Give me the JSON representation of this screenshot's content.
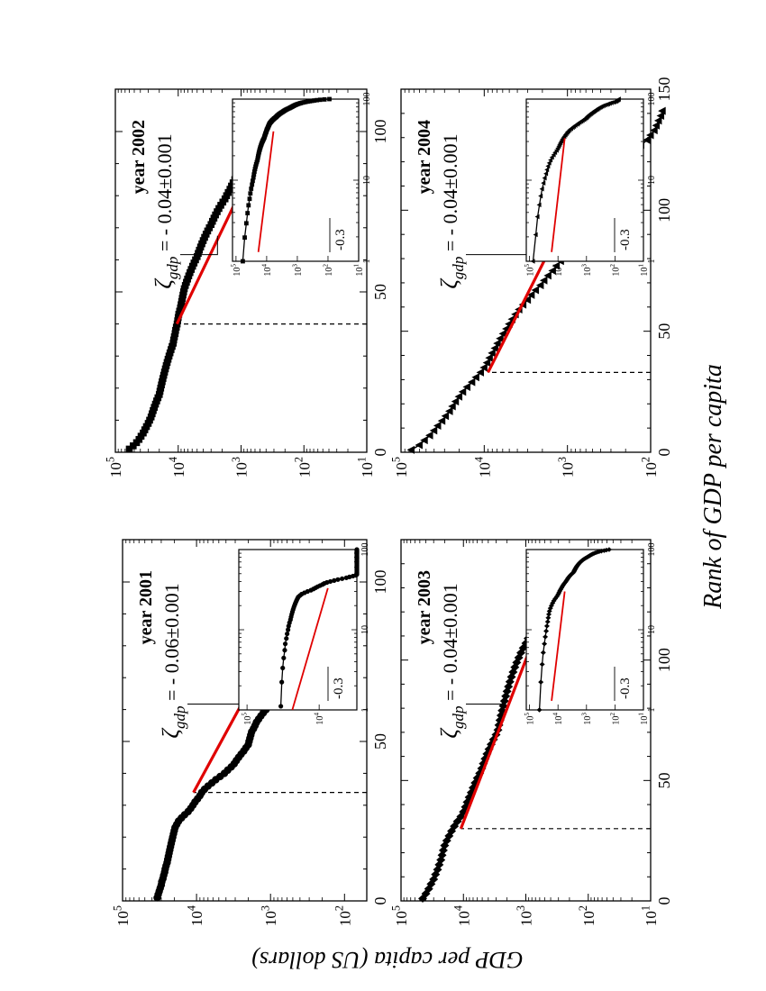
{
  "figure": {
    "xlabel": "Rank of GDP per capita",
    "ylabel": "GDP per capita (US dollars)"
  },
  "chart_data": [
    {
      "type": "scatter",
      "panel": "top-left",
      "title": "year 2001",
      "annotation": {
        "symbol": "ζ",
        "sub": "gdp",
        "text": " = - 0.06±0.001"
      },
      "marker": "circle",
      "xlim": [
        0,
        100
      ],
      "x_ticks": [
        "0",
        "50",
        "100"
      ],
      "ylim": [
        50,
        100000
      ],
      "y_ticks": [
        {
          "v": 100,
          "t": "10",
          "e": "2"
        },
        {
          "v": 1000,
          "t": "10",
          "e": "3"
        },
        {
          "v": 10000,
          "t": "10",
          "e": "4"
        },
        {
          "v": 100000,
          "t": "10",
          "e": "5"
        }
      ],
      "cutoff_rank": 34,
      "fit": {
        "x": [
          34,
          92
        ],
        "y": [
          11000,
          480
        ]
      },
      "inset": {
        "slope_label": "-0.3",
        "x_ticks": [
          "1",
          "10",
          "100"
        ],
        "x_range": [
          1,
          100
        ],
        "y_ticks": [
          {
            "t": "10",
            "e": "5"
          },
          {
            "t": "10",
            "e": "4"
          }
        ],
        "y_range": [
          3000,
          130000
        ],
        "fit_x": [
          1,
          33
        ],
        "fit_y": [
          28000,
          9000
        ]
      },
      "points": {
        "x": [
          1,
          2,
          3,
          4,
          5,
          6,
          7,
          8,
          9,
          10,
          11,
          12,
          13,
          14,
          15,
          16,
          17,
          18,
          19,
          20,
          21,
          22,
          23,
          24,
          25,
          26,
          27,
          28,
          29,
          30,
          31,
          32,
          33,
          34,
          35,
          36,
          37,
          38,
          39,
          40,
          41,
          42,
          43,
          44,
          45,
          46,
          47,
          48,
          49,
          50,
          51,
          52,
          53,
          54,
          55,
          56,
          57,
          58,
          59,
          60,
          61,
          62,
          63,
          64,
          65,
          66,
          67,
          68,
          69,
          70,
          71,
          72,
          73,
          74,
          75,
          76,
          77,
          78,
          79,
          80,
          81,
          82,
          83,
          84,
          85,
          86,
          87,
          88,
          89,
          90
        ],
        "y": [
          34000,
          33000,
          32000,
          31000,
          30000,
          29500,
          28500,
          27800,
          27000,
          26500,
          25800,
          25000,
          24500,
          24000,
          23500,
          23000,
          22500,
          22000,
          21500,
          21000,
          20500,
          20000,
          19500,
          18500,
          17500,
          16000,
          14500,
          13000,
          12000,
          11200,
          10500,
          9700,
          9000,
          8500,
          7800,
          7000,
          6200,
          5500,
          4800,
          4200,
          3800,
          3400,
          3100,
          2900,
          2700,
          2500,
          2300,
          2150,
          2000,
          1950,
          1900,
          1850,
          1800,
          1700,
          1620,
          1550,
          1450,
          1350,
          1250,
          1150,
          1050,
          950,
          900,
          850,
          820,
          780,
          740,
          700,
          660,
          620,
          580,
          540,
          500,
          460,
          430,
          400,
          370,
          340,
          310,
          280,
          250,
          220,
          190,
          170,
          150,
          130,
          110,
          100,
          90,
          80
        ]
      }
    },
    {
      "type": "scatter",
      "panel": "top-right",
      "title": "year 2002",
      "annotation": {
        "symbol": "ζ",
        "sub": "gdp",
        "text": " = - 0.04±0.001"
      },
      "marker": "square",
      "xlim": [
        0,
        100
      ],
      "x_ticks": [
        "0",
        "50",
        "100"
      ],
      "ylim": [
        10,
        100000
      ],
      "y_ticks": [
        {
          "v": 10,
          "t": "10",
          "e": "1"
        },
        {
          "v": 100,
          "t": "10",
          "e": "2"
        },
        {
          "v": 1000,
          "t": "10",
          "e": "3"
        },
        {
          "v": 10000,
          "t": "10",
          "e": "4"
        },
        {
          "v": 100000,
          "t": "10",
          "e": "5"
        }
      ],
      "cutoff_rank": 40,
      "fit": {
        "x": [
          40,
          95
        ],
        "y": [
          10500,
          470
        ]
      },
      "inset": {
        "slope_label": "-0.3",
        "x_ticks": [
          "1",
          "10",
          "100"
        ],
        "x_range": [
          1,
          100
        ],
        "y_ticks": [
          {
            "t": "10",
            "e": "5"
          },
          {
            "t": "10",
            "e": "4"
          },
          {
            "t": "10",
            "e": "3"
          },
          {
            "t": "10",
            "e": "2"
          },
          {
            "t": "10",
            "e": "1"
          }
        ],
        "y_range": [
          10,
          130000
        ],
        "fit_x": [
          1.3,
          40
        ],
        "fit_y": [
          28000,
          9000
        ]
      },
      "points": {
        "x": [
          1,
          2,
          3,
          4,
          5,
          6,
          7,
          8,
          9,
          10,
          11,
          12,
          13,
          14,
          15,
          16,
          17,
          18,
          19,
          20,
          21,
          22,
          23,
          24,
          25,
          26,
          27,
          28,
          29,
          30,
          31,
          32,
          33,
          34,
          35,
          36,
          37,
          38,
          39,
          40,
          41,
          42,
          43,
          44,
          45,
          46,
          47,
          48,
          49,
          50,
          51,
          52,
          53,
          54,
          55,
          56,
          57,
          58,
          59,
          60,
          61,
          62,
          63,
          64,
          65,
          66,
          67,
          68,
          69,
          70,
          71,
          72,
          73,
          74,
          75,
          76,
          77,
          78,
          79,
          80,
          81,
          82,
          83,
          84,
          85,
          86,
          87,
          88,
          89,
          90,
          91,
          92,
          93,
          94,
          95,
          96,
          97,
          98,
          99,
          100,
          101,
          102
        ],
        "y": [
          60000,
          52000,
          46000,
          42000,
          39000,
          36000,
          34000,
          32000,
          30000,
          28500,
          27000,
          26000,
          25000,
          24000,
          23000,
          22000,
          21000,
          20000,
          19500,
          19000,
          18500,
          18000,
          17500,
          17000,
          16500,
          16000,
          15500,
          15000,
          14500,
          14000,
          13500,
          13000,
          12500,
          12000,
          11800,
          11500,
          11200,
          11000,
          10700,
          10400,
          10200,
          10000,
          9800,
          9500,
          9200,
          9000,
          8800,
          8600,
          8400,
          8200,
          8000,
          7700,
          7400,
          7100,
          6800,
          6500,
          6200,
          5900,
          5600,
          5300,
          5000,
          4800,
          4600,
          4400,
          4200,
          4000,
          3800,
          3600,
          3400,
          3200,
          3000,
          2850,
          2700,
          2550,
          2400,
          2250,
          2100,
          1950,
          1800,
          1700,
          1600,
          1500,
          1420,
          1340,
          1260,
          1180,
          1100,
          1020,
          940,
          860,
          780,
          700,
          620,
          540,
          460,
          390,
          330,
          280,
          230,
          180,
          130,
          90
        ]
      }
    },
    {
      "type": "scatter",
      "panel": "bottom-left",
      "title": "year 2003",
      "annotation": {
        "symbol": "ζ",
        "sub": "gdp",
        "text": " = - 0.04±0.001"
      },
      "marker": "diamond",
      "xlim": [
        0,
        150
      ],
      "x_ticks": [
        "0",
        "50",
        "100"
      ],
      "ylim": [
        10,
        100000
      ],
      "y_ticks": [
        {
          "v": 10,
          "t": "10",
          "e": "1"
        },
        {
          "v": 100,
          "t": "10",
          "e": "2"
        },
        {
          "v": 1000,
          "t": "10",
          "e": "3"
        },
        {
          "v": 10000,
          "t": "10",
          "e": "4"
        },
        {
          "v": 100000,
          "t": "10",
          "e": "5"
        }
      ],
      "cutoff_rank": 30,
      "fit": {
        "x": [
          30,
          130
        ],
        "y": [
          11000,
          360
        ]
      },
      "inset": {
        "slope_label": "-0.3",
        "x_ticks": [
          "1",
          "10",
          "100"
        ],
        "x_range": [
          1,
          100
        ],
        "y_ticks": [
          {
            "t": "10",
            "e": "5"
          },
          {
            "t": "10",
            "e": "4"
          },
          {
            "t": "10",
            "e": "3"
          },
          {
            "t": "10",
            "e": "2"
          },
          {
            "t": "10",
            "e": "1"
          }
        ],
        "y_range": [
          10,
          130000
        ],
        "fit_x": [
          1.3,
          30
        ],
        "fit_y": [
          26000,
          9000
        ]
      },
      "points": {
        "x": [
          1,
          3,
          5,
          7,
          9,
          11,
          13,
          15,
          17,
          19,
          21,
          23,
          25,
          27,
          29,
          31,
          33,
          35,
          37,
          39,
          41,
          43,
          45,
          47,
          49,
          51,
          53,
          55,
          57,
          59,
          61,
          63,
          65,
          67,
          69,
          71,
          73,
          75,
          77,
          79,
          81,
          83,
          85,
          87,
          89,
          91,
          93,
          95,
          97,
          99,
          101,
          103,
          105,
          107,
          109,
          111,
          113,
          115,
          117,
          119,
          121,
          123,
          125,
          127,
          129,
          131,
          133,
          135
        ],
        "y": [
          45000,
          40000,
          36000,
          33000,
          30000,
          28000,
          26000,
          24500,
          23000,
          22000,
          21000,
          20000,
          18500,
          17000,
          15500,
          14000,
          12500,
          11000,
          10000,
          9300,
          8700,
          8100,
          7500,
          7000,
          6500,
          6000,
          5500,
          5100,
          4800,
          4500,
          4200,
          3900,
          3600,
          3300,
          3000,
          2800,
          2700,
          2600,
          2500,
          2400,
          2300,
          2200,
          2100,
          2000,
          1900,
          1800,
          1700,
          1600,
          1500,
          1400,
          1300,
          1200,
          1100,
          1000,
          920,
          850,
          780,
          720,
          660,
          600,
          540,
          480,
          420,
          360,
          300,
          240,
          200,
          160
        ]
      }
    },
    {
      "type": "scatter",
      "panel": "bottom-right",
      "title": "year 2004",
      "annotation": {
        "symbol": "ζ",
        "sub": "gdp",
        "text": " = - 0.04±0.001"
      },
      "marker": "triangle",
      "xlim": [
        0,
        150
      ],
      "x_ticks": [
        "0",
        "50",
        "100",
        "150"
      ],
      "ylim": [
        100,
        100000
      ],
      "y_ticks": [
        {
          "v": 100,
          "t": "10",
          "e": "2"
        },
        {
          "v": 1000,
          "t": "10",
          "e": "3"
        },
        {
          "v": 10000,
          "t": "10",
          "e": "4"
        },
        {
          "v": 100000,
          "t": "10",
          "e": "5"
        }
      ],
      "cutoff_rank": 33,
      "fit": {
        "x": [
          33,
          137
        ],
        "y": [
          9000,
          270
        ]
      },
      "inset": {
        "slope_label": "-0.3",
        "x_ticks": [
          "1",
          "10",
          "100"
        ],
        "x_range": [
          1,
          100
        ],
        "y_ticks": [
          {
            "t": "10",
            "e": "5"
          },
          {
            "t": "10",
            "e": "4"
          },
          {
            "t": "10",
            "e": "3"
          },
          {
            "t": "10",
            "e": "2"
          },
          {
            "t": "10",
            "e": "1"
          }
        ],
        "y_range": [
          10,
          130000
        ],
        "fit_x": [
          1.3,
          33
        ],
        "fit_y": [
          26000,
          9000
        ]
      },
      "points": {
        "x": [
          1,
          3,
          5,
          7,
          9,
          11,
          13,
          15,
          17,
          19,
          21,
          23,
          25,
          27,
          29,
          31,
          33,
          35,
          37,
          39,
          41,
          43,
          45,
          47,
          49,
          51,
          53,
          55,
          57,
          59,
          61,
          63,
          65,
          67,
          69,
          71,
          73,
          75,
          77,
          79,
          81,
          83,
          85,
          87,
          89,
          91,
          93,
          95,
          97,
          99,
          101,
          103,
          105,
          107,
          109,
          111,
          113,
          115,
          117,
          119,
          121,
          123,
          125,
          127,
          129,
          131,
          133,
          135,
          137,
          139,
          141
        ],
        "y": [
          75000,
          60000,
          52000,
          45000,
          40000,
          36000,
          32000,
          29000,
          26000,
          24000,
          22000,
          20000,
          18000,
          16000,
          14000,
          12500,
          11000,
          10000,
          9200,
          8600,
          8000,
          7400,
          6900,
          6400,
          5900,
          5400,
          5000,
          4600,
          4200,
          3800,
          3400,
          3000,
          2700,
          2400,
          2100,
          1900,
          1700,
          1500,
          1350,
          1200,
          1100,
          1000,
          940,
          880,
          820,
          760,
          700,
          650,
          600,
          550,
          510,
          470,
          430,
          400,
          370,
          340,
          310,
          280,
          250,
          220,
          190,
          170,
          150,
          130,
          110,
          100,
          90,
          85,
          80,
          75,
          72
        ]
      }
    }
  ]
}
